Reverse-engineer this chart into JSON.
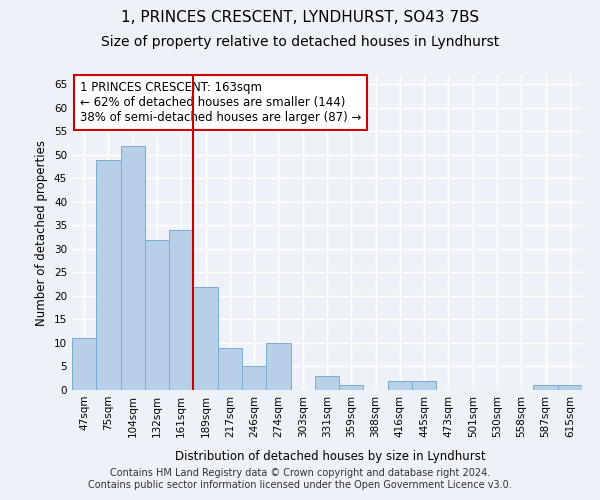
{
  "title": "1, PRINCES CRESCENT, LYNDHURST, SO43 7BS",
  "subtitle": "Size of property relative to detached houses in Lyndhurst",
  "xlabel": "Distribution of detached houses by size in Lyndhurst",
  "ylabel": "Number of detached properties",
  "categories": [
    "47sqm",
    "75sqm",
    "104sqm",
    "132sqm",
    "161sqm",
    "189sqm",
    "217sqm",
    "246sqm",
    "274sqm",
    "303sqm",
    "331sqm",
    "359sqm",
    "388sqm",
    "416sqm",
    "445sqm",
    "473sqm",
    "501sqm",
    "530sqm",
    "558sqm",
    "587sqm",
    "615sqm"
  ],
  "values": [
    11,
    49,
    52,
    32,
    34,
    22,
    9,
    5,
    10,
    0,
    3,
    1,
    0,
    2,
    2,
    0,
    0,
    0,
    0,
    1,
    1
  ],
  "bar_color": "#b8cfe8",
  "bar_edge_color": "#7aadd4",
  "vline_x_index": 4,
  "vline_color": "#cc0000",
  "annotation_text": "1 PRINCES CRESCENT: 163sqm\n← 62% of detached houses are smaller (144)\n38% of semi-detached houses are larger (87) →",
  "annotation_box_facecolor": "#ffffff",
  "annotation_box_edgecolor": "#cc0000",
  "ylim": [
    0,
    67
  ],
  "yticks": [
    0,
    5,
    10,
    15,
    20,
    25,
    30,
    35,
    40,
    45,
    50,
    55,
    60,
    65
  ],
  "footnote": "Contains HM Land Registry data © Crown copyright and database right 2024.\nContains public sector information licensed under the Open Government Licence v3.0.",
  "bg_color": "#eef2f8",
  "grid_color": "#ffffff",
  "title_fontsize": 11,
  "subtitle_fontsize": 10,
  "axis_label_fontsize": 8.5,
  "tick_fontsize": 7.5,
  "annotation_fontsize": 8.5,
  "footnote_fontsize": 7
}
